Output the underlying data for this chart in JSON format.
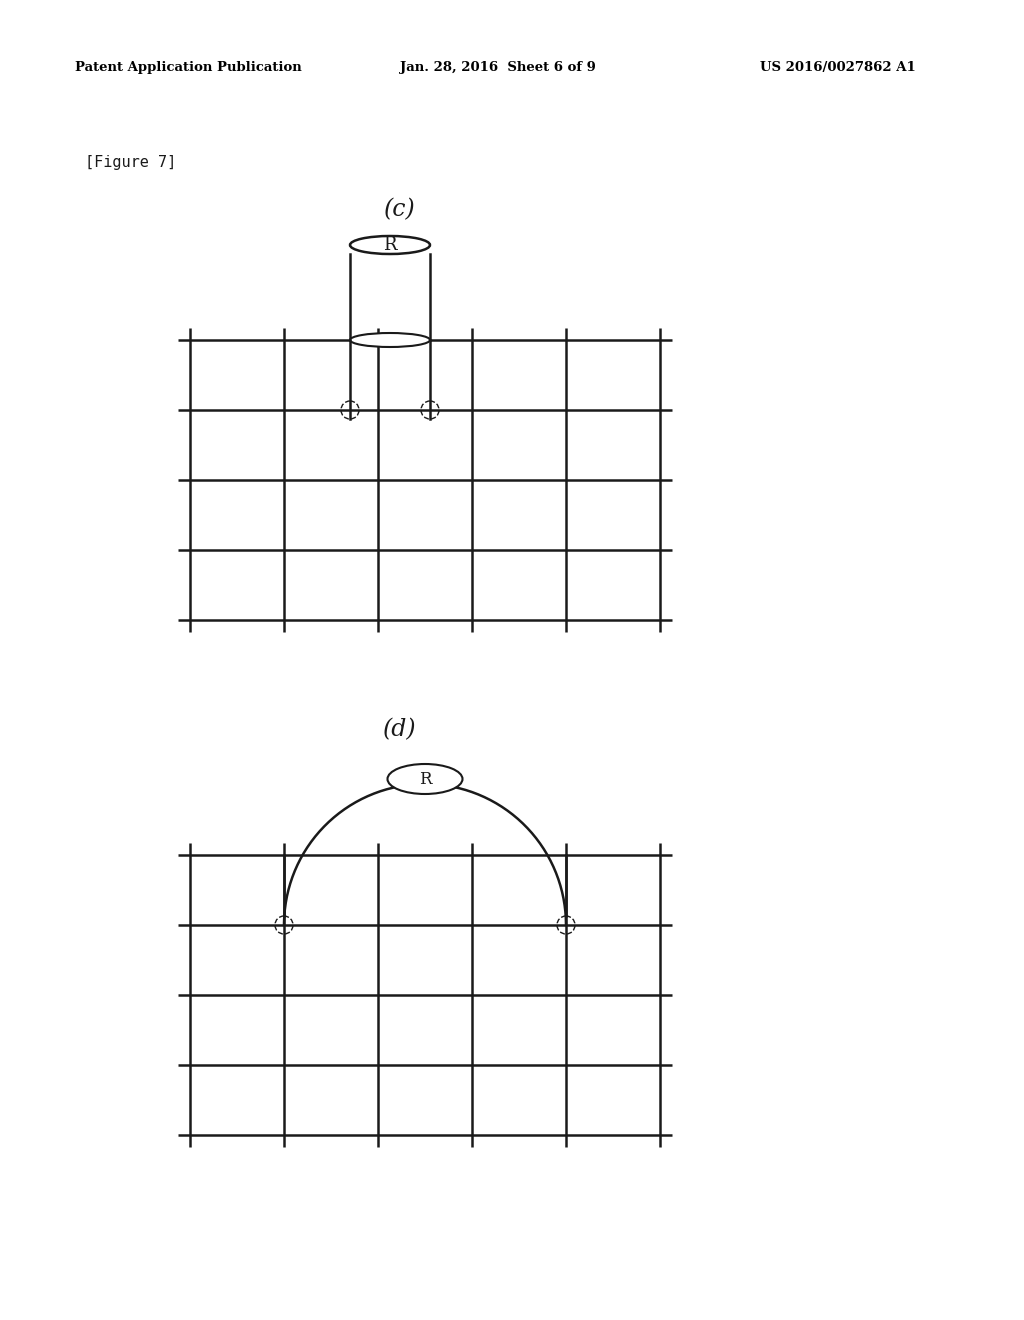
{
  "background_color": "#ffffff",
  "header_left": "Patent Application Publication",
  "header_center": "Jan. 28, 2016  Sheet 6 of 9",
  "header_right": "US 2016/0027862 A1",
  "figure_label": "[Figure 7]",
  "label_c": "(c)",
  "label_d": "(d)",
  "line_color": "#1a1a1a",
  "fig_width": 10.24,
  "fig_height": 13.2
}
